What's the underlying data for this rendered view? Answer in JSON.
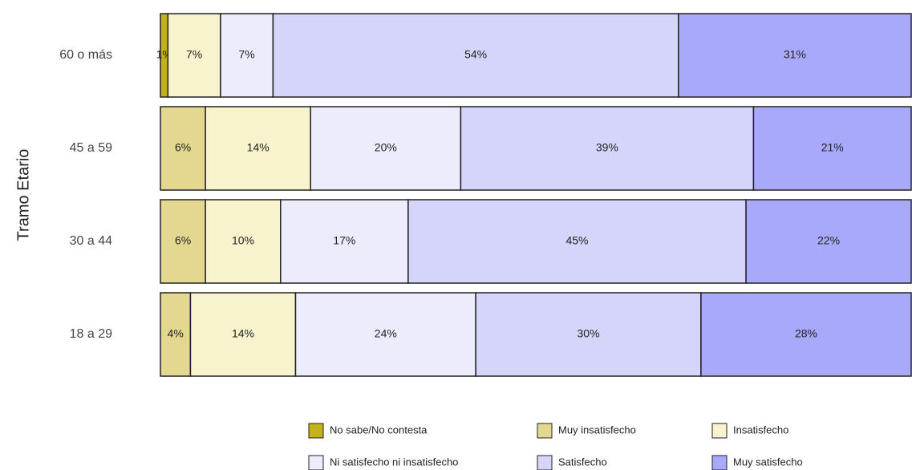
{
  "chart_data": {
    "type": "stacked_bar_horizontal",
    "y_label": "Tramo Etario",
    "categories": [
      "60 o más",
      "45 a 59",
      "30 a 44",
      "18 a 29"
    ],
    "xlim": [
      0,
      100
    ],
    "series": [
      {
        "name": "No sabe/No contesta",
        "color": "#c4b21c",
        "values": [
          1,
          null,
          null,
          null
        ],
        "value_labels": [
          "1%",
          null,
          null,
          null
        ]
      },
      {
        "name": "Muy insatisfecho",
        "color": "#e4d890",
        "values": [
          null,
          6,
          6,
          4
        ],
        "value_labels": [
          null,
          "6%",
          "6%",
          "4%"
        ]
      },
      {
        "name": "Insatisfecho",
        "color": "#f7f3cc",
        "values": [
          7,
          14,
          10,
          14
        ],
        "value_labels": [
          "7%",
          "14%",
          "10%",
          "14%"
        ]
      },
      {
        "name": "Ni satisfecho ni insatisfecho",
        "color": "#ececfd",
        "values": [
          7,
          20,
          17,
          24
        ],
        "value_labels": [
          "7%",
          "20%",
          "17%",
          "24%"
        ]
      },
      {
        "name": "Satisfecho",
        "color": "#d5d5fb",
        "values": [
          54,
          39,
          45,
          30
        ],
        "value_labels": [
          "54%",
          "39%",
          "45%",
          "30%"
        ]
      },
      {
        "name": "Muy satisfecho",
        "color": "#a9a9fb",
        "values": [
          31,
          21,
          22,
          28
        ],
        "value_labels": [
          "31%",
          "21%",
          "22%",
          "28%"
        ]
      }
    ]
  }
}
